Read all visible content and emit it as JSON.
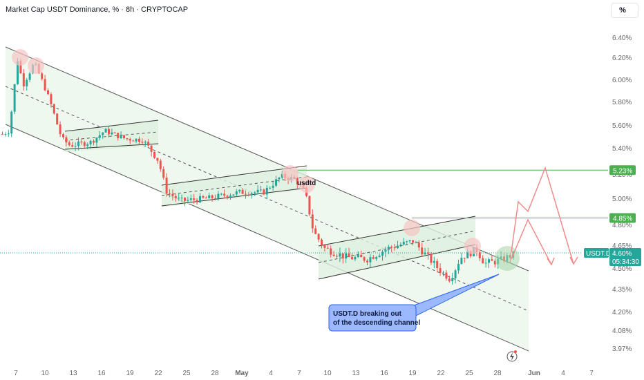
{
  "header": {
    "title": "Market Cap USDT Dominance, % · 8h · CRYPTOCAP"
  },
  "scale_button": {
    "label": "%"
  },
  "colors": {
    "up": "#26a69a",
    "down": "#ef5350",
    "level": "#4caf50",
    "channel_fill": "#e8f5e9",
    "marker": "#f6c4c4",
    "projection": "#f28a8a",
    "callout": "#9cb8ff",
    "callout_border": "#2962ff"
  },
  "chart_data": {
    "type": "candlestick",
    "symbol": "USDT.D",
    "last_value": "4.60%",
    "countdown": "05:34:30",
    "y_ticks": [
      "6.40%",
      "6.20%",
      "6.00%",
      "5.80%",
      "5.60%",
      "5.40%",
      "5.20%",
      "5.00%",
      "4.80%",
      "4.65%",
      "4.50%",
      "4.35%",
      "4.20%",
      "4.08%",
      "3.97%"
    ],
    "x_ticks": [
      "7",
      "10",
      "13",
      "16",
      "19",
      "22",
      "25",
      "28",
      "May",
      "4",
      "7",
      "10",
      "13",
      "16",
      "19",
      "22",
      "25",
      "28",
      "Jun",
      "4",
      "7"
    ],
    "levels": [
      {
        "value": 5.23,
        "label": "5.23%"
      },
      {
        "value": 4.85,
        "label": "4.85%"
      }
    ],
    "annotations": {
      "usdtd_label": "usdtd",
      "callout_line1": "USDT.D breaking out",
      "callout_line2": "of the descending channel"
    }
  }
}
